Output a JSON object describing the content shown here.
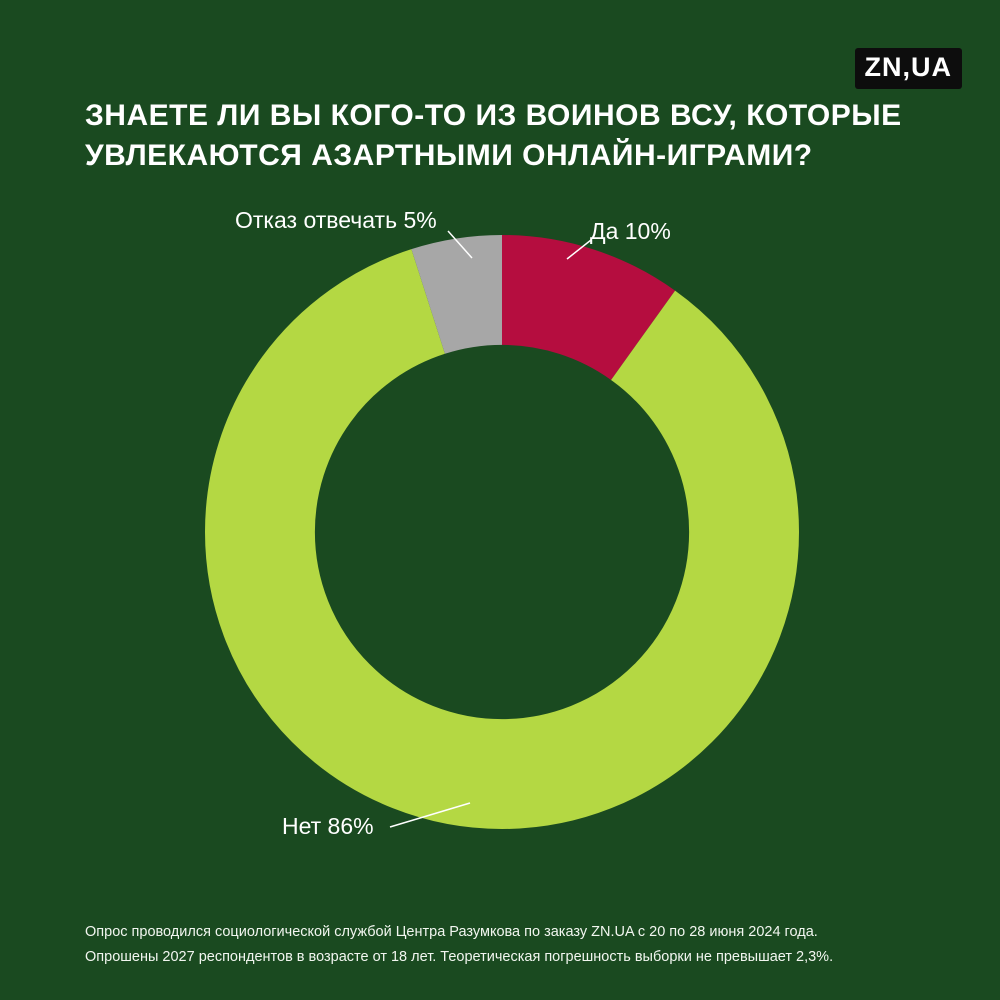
{
  "page": {
    "background_color": "#1a4a20"
  },
  "logo": {
    "text": "ZN,UA",
    "background": "#0d0d0d",
    "color": "#ffffff"
  },
  "title": "ЗНАЕТЕ ЛИ ВЫ КОГО-ТО ИЗ ВОИНОВ ВСУ, КОТОРЫЕ УВЛЕКАЮТСЯ АЗАРТНЫМИ ОНЛАЙН-ИГРАМИ?",
  "chart_data": {
    "type": "pie",
    "subtype": "donut",
    "title": "ЗНАЕТЕ ЛИ ВЫ КОГО-ТО ИЗ ВОИНОВ ВСУ, КОТОРЫЕ УВЛЕКАЮТСЯ АЗАРТНЫМИ ОНЛАЙН-ИГРАМИ?",
    "start_angle_deg": 0,
    "direction": "clockwise",
    "inner_radius_ratio": 0.63,
    "legend_position": "labels-with-leader-lines",
    "slices": [
      {
        "label": "Да",
        "value": 10,
        "display": "Да 10%",
        "color": "#b50d3f"
      },
      {
        "label": "Нет",
        "value": 86,
        "display": "Нет 86%",
        "color": "#b4d843"
      },
      {
        "label": "Отказ отвечать",
        "value": 5,
        "display": "Отказ отвечать 5%",
        "color": "#a7a7a7"
      }
    ]
  },
  "footer": {
    "line1": "Опрос проводился социологической службой Центра Разумкова по заказу ZN.UA с 20 по 28 июня 2024 года.",
    "line2": "Опрошены 2027 респондентов в возрасте от 18 лет. Теоретическая погрешность выборки не превышает 2,3%."
  }
}
